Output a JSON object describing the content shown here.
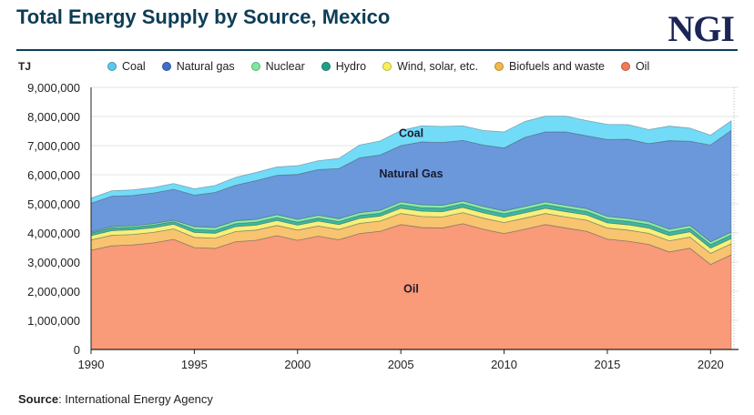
{
  "header": {
    "title": "Total Energy Supply by Source, Mexico",
    "logo": "NGI"
  },
  "source": {
    "label": "Source",
    "text": ": International Energy Agency"
  },
  "chart_data": {
    "type": "area",
    "stacked": true,
    "title": "Total Energy Supply by Source, Mexico",
    "ylabel": "TJ",
    "xlabel": "",
    "ylim": [
      0,
      9000000
    ],
    "xlim": [
      1990,
      2021
    ],
    "yticks": [
      "0",
      "1,000,000",
      "2,000,000",
      "3,000,000",
      "4,000,000",
      "5,000,000",
      "6,000,000",
      "7,000,000",
      "8,000,000",
      "9,000,000"
    ],
    "xticks": [
      "1990",
      "1995",
      "2000",
      "2005",
      "2010",
      "2015",
      "2020"
    ],
    "grid": true,
    "legend_position": "top",
    "x": [
      1990,
      1991,
      1992,
      1993,
      1994,
      1995,
      1996,
      1997,
      1998,
      1999,
      2000,
      2001,
      2002,
      2003,
      2004,
      2005,
      2006,
      2007,
      2008,
      2009,
      2010,
      2011,
      2012,
      2013,
      2014,
      2015,
      2016,
      2017,
      2018,
      2019,
      2020,
      2021
    ],
    "annotations": [
      {
        "text": "Coal",
        "x": 2005.5,
        "y": 7300000
      },
      {
        "text": "Natural Gas",
        "x": 2005.5,
        "y": 5900000
      },
      {
        "text": "Oil",
        "x": 2005.5,
        "y": 1950000
      }
    ],
    "series": [
      {
        "name": "Oil",
        "color": "#f99a78",
        "legend_color": "#f27a5a",
        "values": [
          3410000,
          3560000,
          3590000,
          3660000,
          3780000,
          3500000,
          3470000,
          3700000,
          3750000,
          3910000,
          3750000,
          3890000,
          3770000,
          3980000,
          4060000,
          4290000,
          4190000,
          4170000,
          4320000,
          4130000,
          3980000,
          4130000,
          4290000,
          4170000,
          4060000,
          3790000,
          3720000,
          3610000,
          3350000,
          3480000,
          2920000,
          3250000
        ]
      },
      {
        "name": "Biofuels and waste",
        "color": "#f8c470",
        "legend_color": "#f2b84b",
        "values": [
          350000,
          360000,
          360000,
          360000,
          360000,
          350000,
          350000,
          350000,
          350000,
          350000,
          350000,
          350000,
          350000,
          350000,
          350000,
          380000,
          380000,
          380000,
          380000,
          380000,
          380000,
          380000,
          380000,
          380000,
          380000,
          380000,
          380000,
          380000,
          380000,
          380000,
          380000,
          380000
        ]
      },
      {
        "name": "Wind, solar, etc.",
        "color": "#f7f07a",
        "legend_color": "#f8ef5a",
        "values": [
          150000,
          160000,
          160000,
          160000,
          160000,
          170000,
          170000,
          170000,
          170000,
          170000,
          170000,
          170000,
          170000,
          170000,
          170000,
          180000,
          180000,
          180000,
          180000,
          180000,
          180000,
          180000,
          180000,
          180000,
          180000,
          180000,
          180000,
          180000,
          180000,
          180000,
          180000,
          180000
        ]
      },
      {
        "name": "Hydro",
        "color": "#3bb8a2",
        "legend_color": "#1f9f8a",
        "values": [
          90000,
          90000,
          90000,
          90000,
          90000,
          100000,
          100000,
          100000,
          100000,
          100000,
          100000,
          100000,
          100000,
          100000,
          100000,
          120000,
          120000,
          120000,
          120000,
          120000,
          120000,
          120000,
          120000,
          120000,
          120000,
          120000,
          120000,
          120000,
          120000,
          120000,
          120000,
          120000
        ]
      },
      {
        "name": "Nuclear",
        "color": "#86eaa6",
        "legend_color": "#7de89a",
        "values": [
          30000,
          50000,
          50000,
          50000,
          50000,
          100000,
          100000,
          100000,
          100000,
          100000,
          100000,
          100000,
          100000,
          100000,
          100000,
          100000,
          100000,
          100000,
          100000,
          100000,
          100000,
          100000,
          100000,
          100000,
          100000,
          100000,
          100000,
          100000,
          100000,
          100000,
          100000,
          100000
        ]
      },
      {
        "name": "Natural gas",
        "color": "#6b98da",
        "legend_color": "#3f6fc8",
        "values": [
          990000,
          1040000,
          1040000,
          1050000,
          1060000,
          1080000,
          1200000,
          1220000,
          1330000,
          1350000,
          1540000,
          1570000,
          1720000,
          1880000,
          1900000,
          1930000,
          2160000,
          2160000,
          2080000,
          2110000,
          2160000,
          2370000,
          2400000,
          2520000,
          2500000,
          2640000,
          2720000,
          2680000,
          3040000,
          2890000,
          3320000,
          3490000
        ]
      },
      {
        "name": "Coal",
        "color": "#72dcf8",
        "legend_color": "#5bc8ef",
        "values": [
          180000,
          190000,
          190000,
          190000,
          200000,
          220000,
          240000,
          270000,
          280000,
          290000,
          300000,
          300000,
          350000,
          440000,
          480000,
          520000,
          550000,
          550000,
          500000,
          500000,
          550000,
          550000,
          540000,
          540000,
          520000,
          520000,
          500000,
          480000,
          500000,
          450000,
          340000,
          330000
        ]
      }
    ],
    "legend_order": [
      "Coal",
      "Natural gas",
      "Nuclear",
      "Hydro",
      "Wind, solar, etc.",
      "Biofuels and waste",
      "Oil"
    ]
  }
}
